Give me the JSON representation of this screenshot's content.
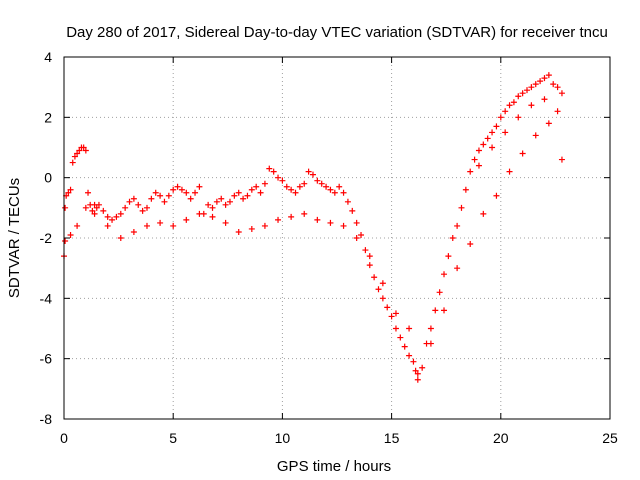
{
  "chart_data": {
    "type": "scatter",
    "title": "Day 280 of 2017, Sidereal Day-to-day VTEC variation (SDTVAR) for receiver tncu",
    "xlabel": "GPS time / hours",
    "ylabel": "SDTVAR / TECUs",
    "xlim": [
      0,
      25
    ],
    "ylim": [
      -8,
      4
    ],
    "xticks": [
      0,
      5,
      10,
      15,
      20,
      25
    ],
    "yticks": [
      -8,
      -6,
      -4,
      -2,
      0,
      2,
      4
    ],
    "grid": true,
    "marker": "+",
    "series": [
      {
        "name": "SDTVAR",
        "color": "#ff0000",
        "x": [
          0.0,
          0.05,
          0.1,
          0.2,
          0.3,
          0.4,
          0.5,
          0.6,
          0.7,
          0.8,
          0.9,
          1.0,
          1.1,
          1.2,
          1.3,
          1.4,
          1.5,
          1.6,
          1.8,
          2.0,
          2.2,
          2.4,
          2.6,
          2.8,
          3.0,
          3.2,
          3.4,
          3.6,
          3.8,
          4.0,
          4.2,
          4.4,
          4.6,
          4.8,
          5.0,
          5.2,
          5.4,
          5.6,
          5.8,
          6.0,
          6.2,
          6.4,
          6.6,
          6.8,
          7.0,
          7.2,
          7.4,
          7.6,
          7.8,
          8.0,
          8.2,
          8.4,
          8.6,
          8.8,
          9.0,
          9.2,
          9.4,
          9.6,
          9.8,
          10.0,
          10.2,
          10.4,
          10.6,
          10.8,
          11.0,
          11.2,
          11.4,
          11.6,
          11.8,
          12.0,
          12.2,
          12.4,
          12.6,
          12.8,
          13.0,
          13.2,
          13.4,
          13.6,
          13.8,
          14.0,
          14.2,
          14.4,
          14.6,
          14.8,
          15.0,
          15.2,
          15.4,
          15.6,
          15.8,
          16.0,
          16.1,
          16.2,
          16.4,
          16.6,
          16.8,
          17.0,
          17.2,
          17.4,
          17.6,
          17.8,
          18.0,
          18.2,
          18.4,
          18.6,
          18.8,
          19.0,
          19.2,
          19.4,
          19.6,
          19.8,
          20.0,
          20.2,
          20.4,
          20.6,
          20.8,
          21.0,
          21.2,
          21.4,
          21.6,
          21.8,
          22.0,
          22.2,
          22.4,
          22.6,
          22.8,
          0.05,
          0.3,
          0.6,
          1.0,
          1.4,
          2.0,
          2.6,
          3.2,
          3.8,
          4.4,
          5.0,
          5.6,
          6.2,
          6.8,
          7.4,
          8.0,
          8.6,
          9.2,
          9.8,
          10.4,
          11.0,
          11.6,
          12.2,
          12.8,
          13.4,
          14.0,
          14.6,
          15.2,
          15.8,
          16.2,
          16.8,
          17.4,
          18.0,
          18.6,
          19.2,
          19.8,
          20.4,
          21.0,
          21.6,
          22.2,
          22.8,
          19.0,
          19.6,
          20.2,
          20.8,
          21.4,
          22.0,
          22.6
        ],
        "y": [
          -2.6,
          -1.0,
          -0.6,
          -0.5,
          -0.4,
          0.5,
          0.7,
          0.8,
          0.9,
          1.0,
          1.0,
          0.9,
          -0.5,
          -0.9,
          -1.1,
          -1.2,
          -1.0,
          -0.9,
          -1.1,
          -1.3,
          -1.4,
          -1.3,
          -1.2,
          -1.0,
          -0.8,
          -0.7,
          -0.9,
          -1.1,
          -1.0,
          -0.7,
          -0.5,
          -0.6,
          -0.8,
          -0.6,
          -0.4,
          -0.3,
          -0.4,
          -0.5,
          -0.7,
          -0.5,
          -0.3,
          -1.2,
          -0.9,
          -1.0,
          -0.8,
          -0.7,
          -0.9,
          -0.8,
          -0.6,
          -0.5,
          -0.7,
          -0.6,
          -0.4,
          -0.3,
          -0.5,
          -0.2,
          0.3,
          0.2,
          0.0,
          -0.1,
          -0.3,
          -0.4,
          -0.5,
          -0.3,
          -0.2,
          0.2,
          0.1,
          -0.1,
          -0.2,
          -0.3,
          -0.4,
          -0.5,
          -0.3,
          -0.5,
          -0.8,
          -1.1,
          -1.5,
          -1.9,
          -2.4,
          -2.9,
          -3.3,
          -3.7,
          -4.0,
          -4.3,
          -4.6,
          -5.0,
          -5.3,
          -5.6,
          -5.9,
          -6.1,
          -6.4,
          -6.7,
          -6.3,
          -5.5,
          -5.0,
          -4.4,
          -3.8,
          -3.2,
          -2.6,
          -2.0,
          -1.6,
          -1.0,
          -0.4,
          0.2,
          0.6,
          0.9,
          1.1,
          1.3,
          1.5,
          1.7,
          2.0,
          2.2,
          2.4,
          2.5,
          2.7,
          2.8,
          2.9,
          3.0,
          3.1,
          3.2,
          3.3,
          3.4,
          3.1,
          3.0,
          2.8,
          -2.1,
          -1.9,
          -1.6,
          -1.0,
          -0.9,
          -1.6,
          -2.0,
          -1.8,
          -1.6,
          -1.5,
          -1.6,
          -1.4,
          -1.2,
          -1.3,
          -1.5,
          -1.8,
          -1.7,
          -1.6,
          -1.4,
          -1.3,
          -1.2,
          -1.4,
          -1.5,
          -1.6,
          -2.0,
          -2.6,
          -3.5,
          -4.5,
          -5.0,
          -6.5,
          -5.5,
          -4.4,
          -3.0,
          -2.2,
          -1.2,
          -0.6,
          0.2,
          0.8,
          1.4,
          1.8,
          0.6,
          0.4,
          1.0,
          1.5,
          2.0,
          2.4,
          2.6,
          2.2
        ]
      }
    ]
  }
}
